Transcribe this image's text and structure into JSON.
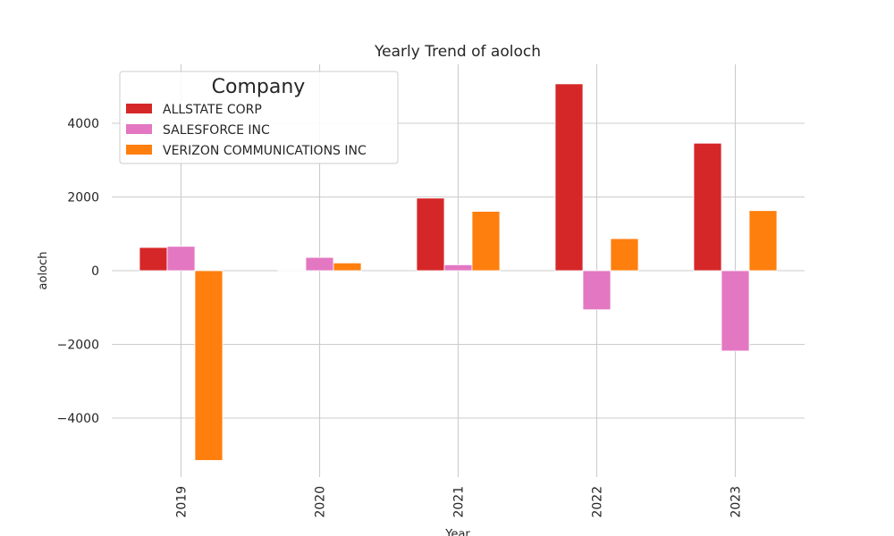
{
  "chart_data": {
    "type": "bar",
    "title": "Yearly Trend of aoloch",
    "xlabel": "Year",
    "ylabel": "aoloch",
    "categories": [
      "2019",
      "2020",
      "2021",
      "2022",
      "2023"
    ],
    "series": [
      {
        "name": "ALLSTATE CORP",
        "color": "#d62728",
        "values": [
          630,
          20,
          1970,
          5070,
          3460
        ]
      },
      {
        "name": "SALESFORCE INC",
        "color": "#e377c2",
        "values": [
          660,
          360,
          160,
          -1060,
          -2180
        ]
      },
      {
        "name": "VERIZON COMMUNICATIONS INC",
        "color": "#ff7f0e",
        "values": [
          -5150,
          210,
          1610,
          870,
          1630
        ]
      }
    ],
    "yticks": [
      -4000,
      -2000,
      0,
      2000,
      4000
    ],
    "ylim": [
      -5600,
      5600
    ],
    "grid": true,
    "legend": {
      "title": "Company",
      "position": "top-left"
    }
  }
}
